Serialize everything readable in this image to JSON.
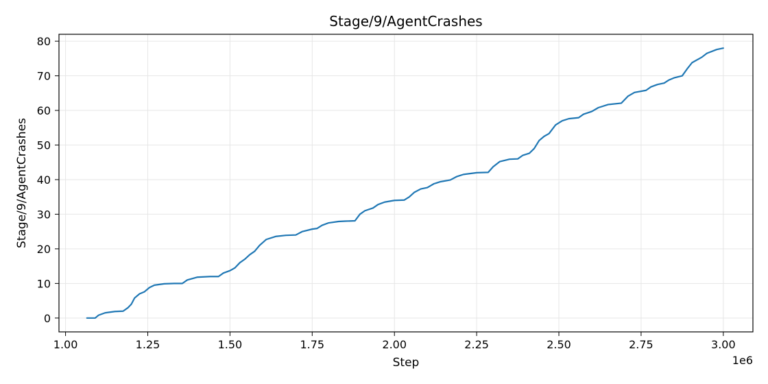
{
  "chart_data": {
    "type": "line",
    "title": "Stage/9/AgentCrashes",
    "xlabel": "Step",
    "ylabel": "Stage/9/AgentCrashes",
    "x_offset_label": "1e6",
    "xlim": [
      0.98,
      3.09
    ],
    "ylim": [
      -4.0,
      82.0
    ],
    "x_ticks": [
      1.0,
      1.25,
      1.5,
      1.75,
      2.0,
      2.25,
      2.5,
      2.75,
      3.0
    ],
    "x_tick_labels": [
      "1.00",
      "1.25",
      "1.50",
      "1.75",
      "2.00",
      "2.25",
      "2.50",
      "2.75",
      "3.00"
    ],
    "y_ticks": [
      0,
      10,
      20,
      30,
      40,
      50,
      60,
      70,
      80
    ],
    "y_tick_labels": [
      "0",
      "10",
      "20",
      "30",
      "40",
      "50",
      "60",
      "70",
      "80"
    ],
    "grid": true,
    "line_color": "#1f77b4",
    "series": [
      {
        "x": [
          1.065,
          1.09,
          1.1,
          1.12,
          1.15,
          1.175,
          1.19,
          1.2,
          1.21,
          1.225,
          1.24,
          1.255,
          1.27,
          1.3,
          1.33,
          1.355,
          1.37,
          1.4,
          1.44,
          1.465,
          1.48,
          1.5,
          1.515,
          1.53,
          1.545,
          1.56,
          1.575,
          1.59,
          1.61,
          1.64,
          1.67,
          1.7,
          1.72,
          1.75,
          1.765,
          1.78,
          1.8,
          1.83,
          1.85,
          1.88,
          1.895,
          1.91,
          1.935,
          1.95,
          1.97,
          2.0,
          2.03,
          2.045,
          2.06,
          2.08,
          2.1,
          2.12,
          2.14,
          2.17,
          2.19,
          2.21,
          2.25,
          2.285,
          2.3,
          2.32,
          2.35,
          2.375,
          2.39,
          2.41,
          2.425,
          2.44,
          2.455,
          2.47,
          2.49,
          2.51,
          2.53,
          2.56,
          2.575,
          2.6,
          2.62,
          2.65,
          2.69,
          2.71,
          2.73,
          2.765,
          2.78,
          2.8,
          2.82,
          2.835,
          2.85,
          2.875,
          2.89,
          2.905,
          2.935,
          2.95,
          2.98,
          3.0
        ],
        "y": [
          0,
          0,
          0.8,
          1.5,
          1.9,
          2.0,
          3.0,
          4.0,
          5.8,
          7.0,
          7.6,
          8.8,
          9.5,
          9.9,
          10.0,
          10.0,
          11.0,
          11.8,
          12.0,
          12.0,
          13.0,
          13.7,
          14.5,
          16.0,
          17.0,
          18.3,
          19.3,
          21.0,
          22.7,
          23.6,
          23.9,
          24.0,
          25.0,
          25.7,
          25.9,
          26.8,
          27.5,
          27.9,
          28.0,
          28.1,
          30.0,
          31.0,
          31.8,
          32.8,
          33.5,
          34.0,
          34.1,
          35.0,
          36.3,
          37.3,
          37.7,
          38.8,
          39.4,
          39.9,
          40.9,
          41.5,
          42.0,
          42.1,
          43.7,
          45.2,
          45.9,
          46.0,
          47.0,
          47.6,
          49.0,
          51.3,
          52.5,
          53.3,
          55.8,
          57.0,
          57.6,
          57.9,
          58.9,
          59.7,
          60.8,
          61.7,
          62.1,
          64.1,
          65.2,
          65.8,
          66.8,
          67.5,
          67.9,
          68.8,
          69.4,
          70.0,
          72.0,
          73.8,
          75.4,
          76.5,
          77.6,
          78.0
        ]
      }
    ]
  }
}
